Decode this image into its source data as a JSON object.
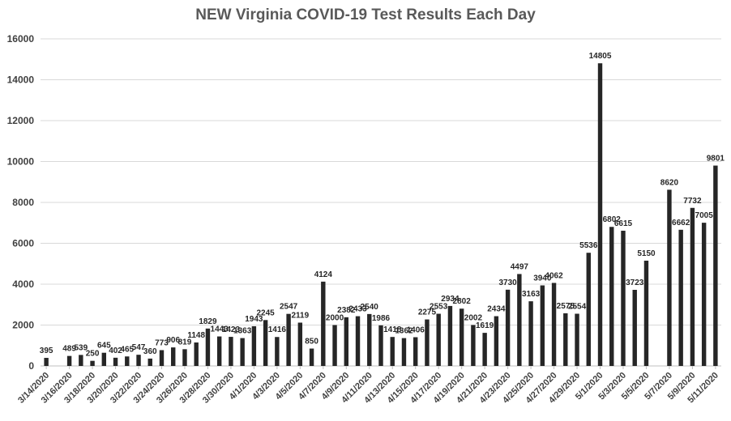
{
  "chart_data": {
    "type": "bar",
    "title": "NEW Virginia COVID-19 Test Results Each Day",
    "xlabel": "",
    "ylabel": "",
    "ylim": [
      0,
      16000
    ],
    "yticks": [
      0,
      2000,
      4000,
      6000,
      8000,
      10000,
      12000,
      14000,
      16000
    ],
    "grid": true,
    "legend": "none",
    "bar_color": "#262626",
    "categories": [
      "3/14/2020",
      "3/15/2020",
      "3/16/2020",
      "3/17/2020",
      "3/18/2020",
      "3/19/2020",
      "3/20/2020",
      "3/21/2020",
      "3/22/2020",
      "3/23/2020",
      "3/24/2020",
      "3/25/2020",
      "3/26/2020",
      "3/27/2020",
      "3/28/2020",
      "3/29/2020",
      "3/30/2020",
      "3/31/2020",
      "4/1/2020",
      "4/2/2020",
      "4/3/2020",
      "4/4/2020",
      "4/5/2020",
      "4/6/2020",
      "4/7/2020",
      "4/8/2020",
      "4/9/2020",
      "4/10/2020",
      "4/11/2020",
      "4/12/2020",
      "4/13/2020",
      "4/14/2020",
      "4/15/2020",
      "4/16/2020",
      "4/17/2020",
      "4/18/2020",
      "4/19/2020",
      "4/20/2020",
      "4/21/2020",
      "4/22/2020",
      "4/23/2020",
      "4/24/2020",
      "4/25/2020",
      "4/26/2020",
      "4/27/2020",
      "4/28/2020",
      "4/29/2020",
      "4/30/2020",
      "5/1/2020",
      "5/2/2020",
      "5/3/2020",
      "5/4/2020",
      "5/5/2020",
      "5/6/2020",
      "5/7/2020",
      "5/8/2020",
      "5/9/2020",
      "5/10/2020",
      "5/11/2020"
    ],
    "tick_labels": [
      "3/14/2020",
      "3/16/2020",
      "3/18/2020",
      "3/20/2020",
      "3/22/2020",
      "3/24/2020",
      "3/26/2020",
      "3/28/2020",
      "3/30/2020",
      "4/1/2020",
      "4/3/2020",
      "4/5/2020",
      "4/7/2020",
      "4/9/2020",
      "4/11/2020",
      "4/13/2020",
      "4/15/2020",
      "4/17/2020",
      "4/19/2020",
      "4/21/2020",
      "4/23/2020",
      "4/25/2020",
      "4/27/2020",
      "4/29/2020",
      "5/1/2020",
      "5/3/2020",
      "5/5/2020",
      "5/7/2020",
      "5/9/2020",
      "5/11/2020"
    ],
    "values": [
      395,
      null,
      489,
      539,
      250,
      645,
      402,
      465,
      547,
      360,
      773,
      906,
      819,
      1148,
      1829,
      1443,
      1423,
      1363,
      1943,
      2245,
      1416,
      2547,
      2119,
      850,
      4124,
      2000,
      2382,
      2433,
      2540,
      1986,
      1418,
      1362,
      1406,
      2275,
      2553,
      2934,
      2802,
      2002,
      1619,
      2434,
      3730,
      4497,
      3163,
      3940,
      4062,
      2575,
      2554,
      5536,
      14805,
      6802,
      6615,
      3723,
      5150,
      null,
      8620,
      6662,
      7732,
      7005,
      9801
    ]
  }
}
